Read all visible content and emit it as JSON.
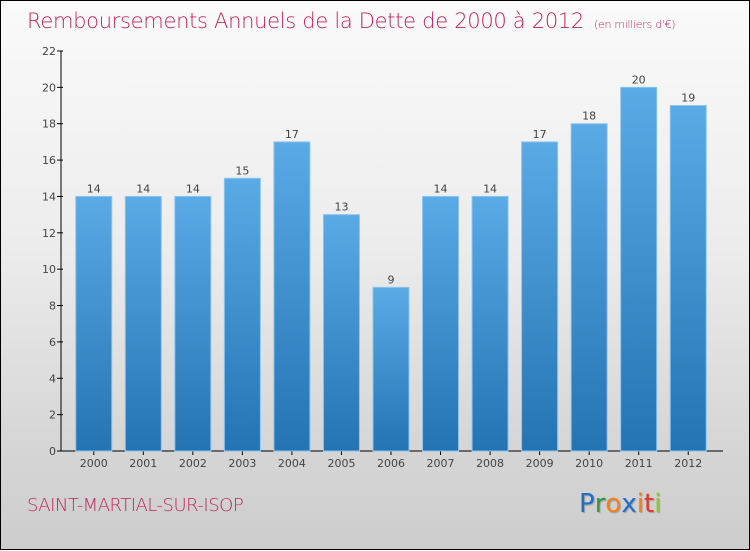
{
  "chart_data": {
    "type": "bar",
    "title": "Remboursements Annuels de la Dette de 2000 à 2012",
    "subtitle": "(en milliers d'€)",
    "xlabel": "",
    "ylabel": "",
    "categories": [
      "2000",
      "2001",
      "2002",
      "2003",
      "2004",
      "2005",
      "2006",
      "2007",
      "2008",
      "2009",
      "2010",
      "2011",
      "2012"
    ],
    "values": [
      14,
      14,
      14,
      15,
      17,
      13,
      9,
      14,
      14,
      17,
      18,
      20,
      19
    ],
    "ylim": [
      0,
      22
    ],
    "yticks": [
      0,
      2,
      4,
      6,
      8,
      10,
      12,
      14,
      16,
      18,
      20,
      22
    ],
    "grid": false,
    "bar_color_top": "#5aaae6",
    "bar_color_bottom": "#2474b4"
  },
  "footer": {
    "commune": "SAINT-MARTIAL-SUR-ISOP",
    "logo_letters": [
      {
        "char": "P",
        "color": "#1e6fc8"
      },
      {
        "char": "r",
        "color": "#2e9a3a"
      },
      {
        "char": "o",
        "color": "#f0801e"
      },
      {
        "char": "x",
        "color": "#1e6fc8"
      },
      {
        "char": "i",
        "color": "#f0801e"
      },
      {
        "char": "t",
        "color": "#e03a2a"
      },
      {
        "char": "i",
        "color": "#8cc63e"
      }
    ]
  }
}
